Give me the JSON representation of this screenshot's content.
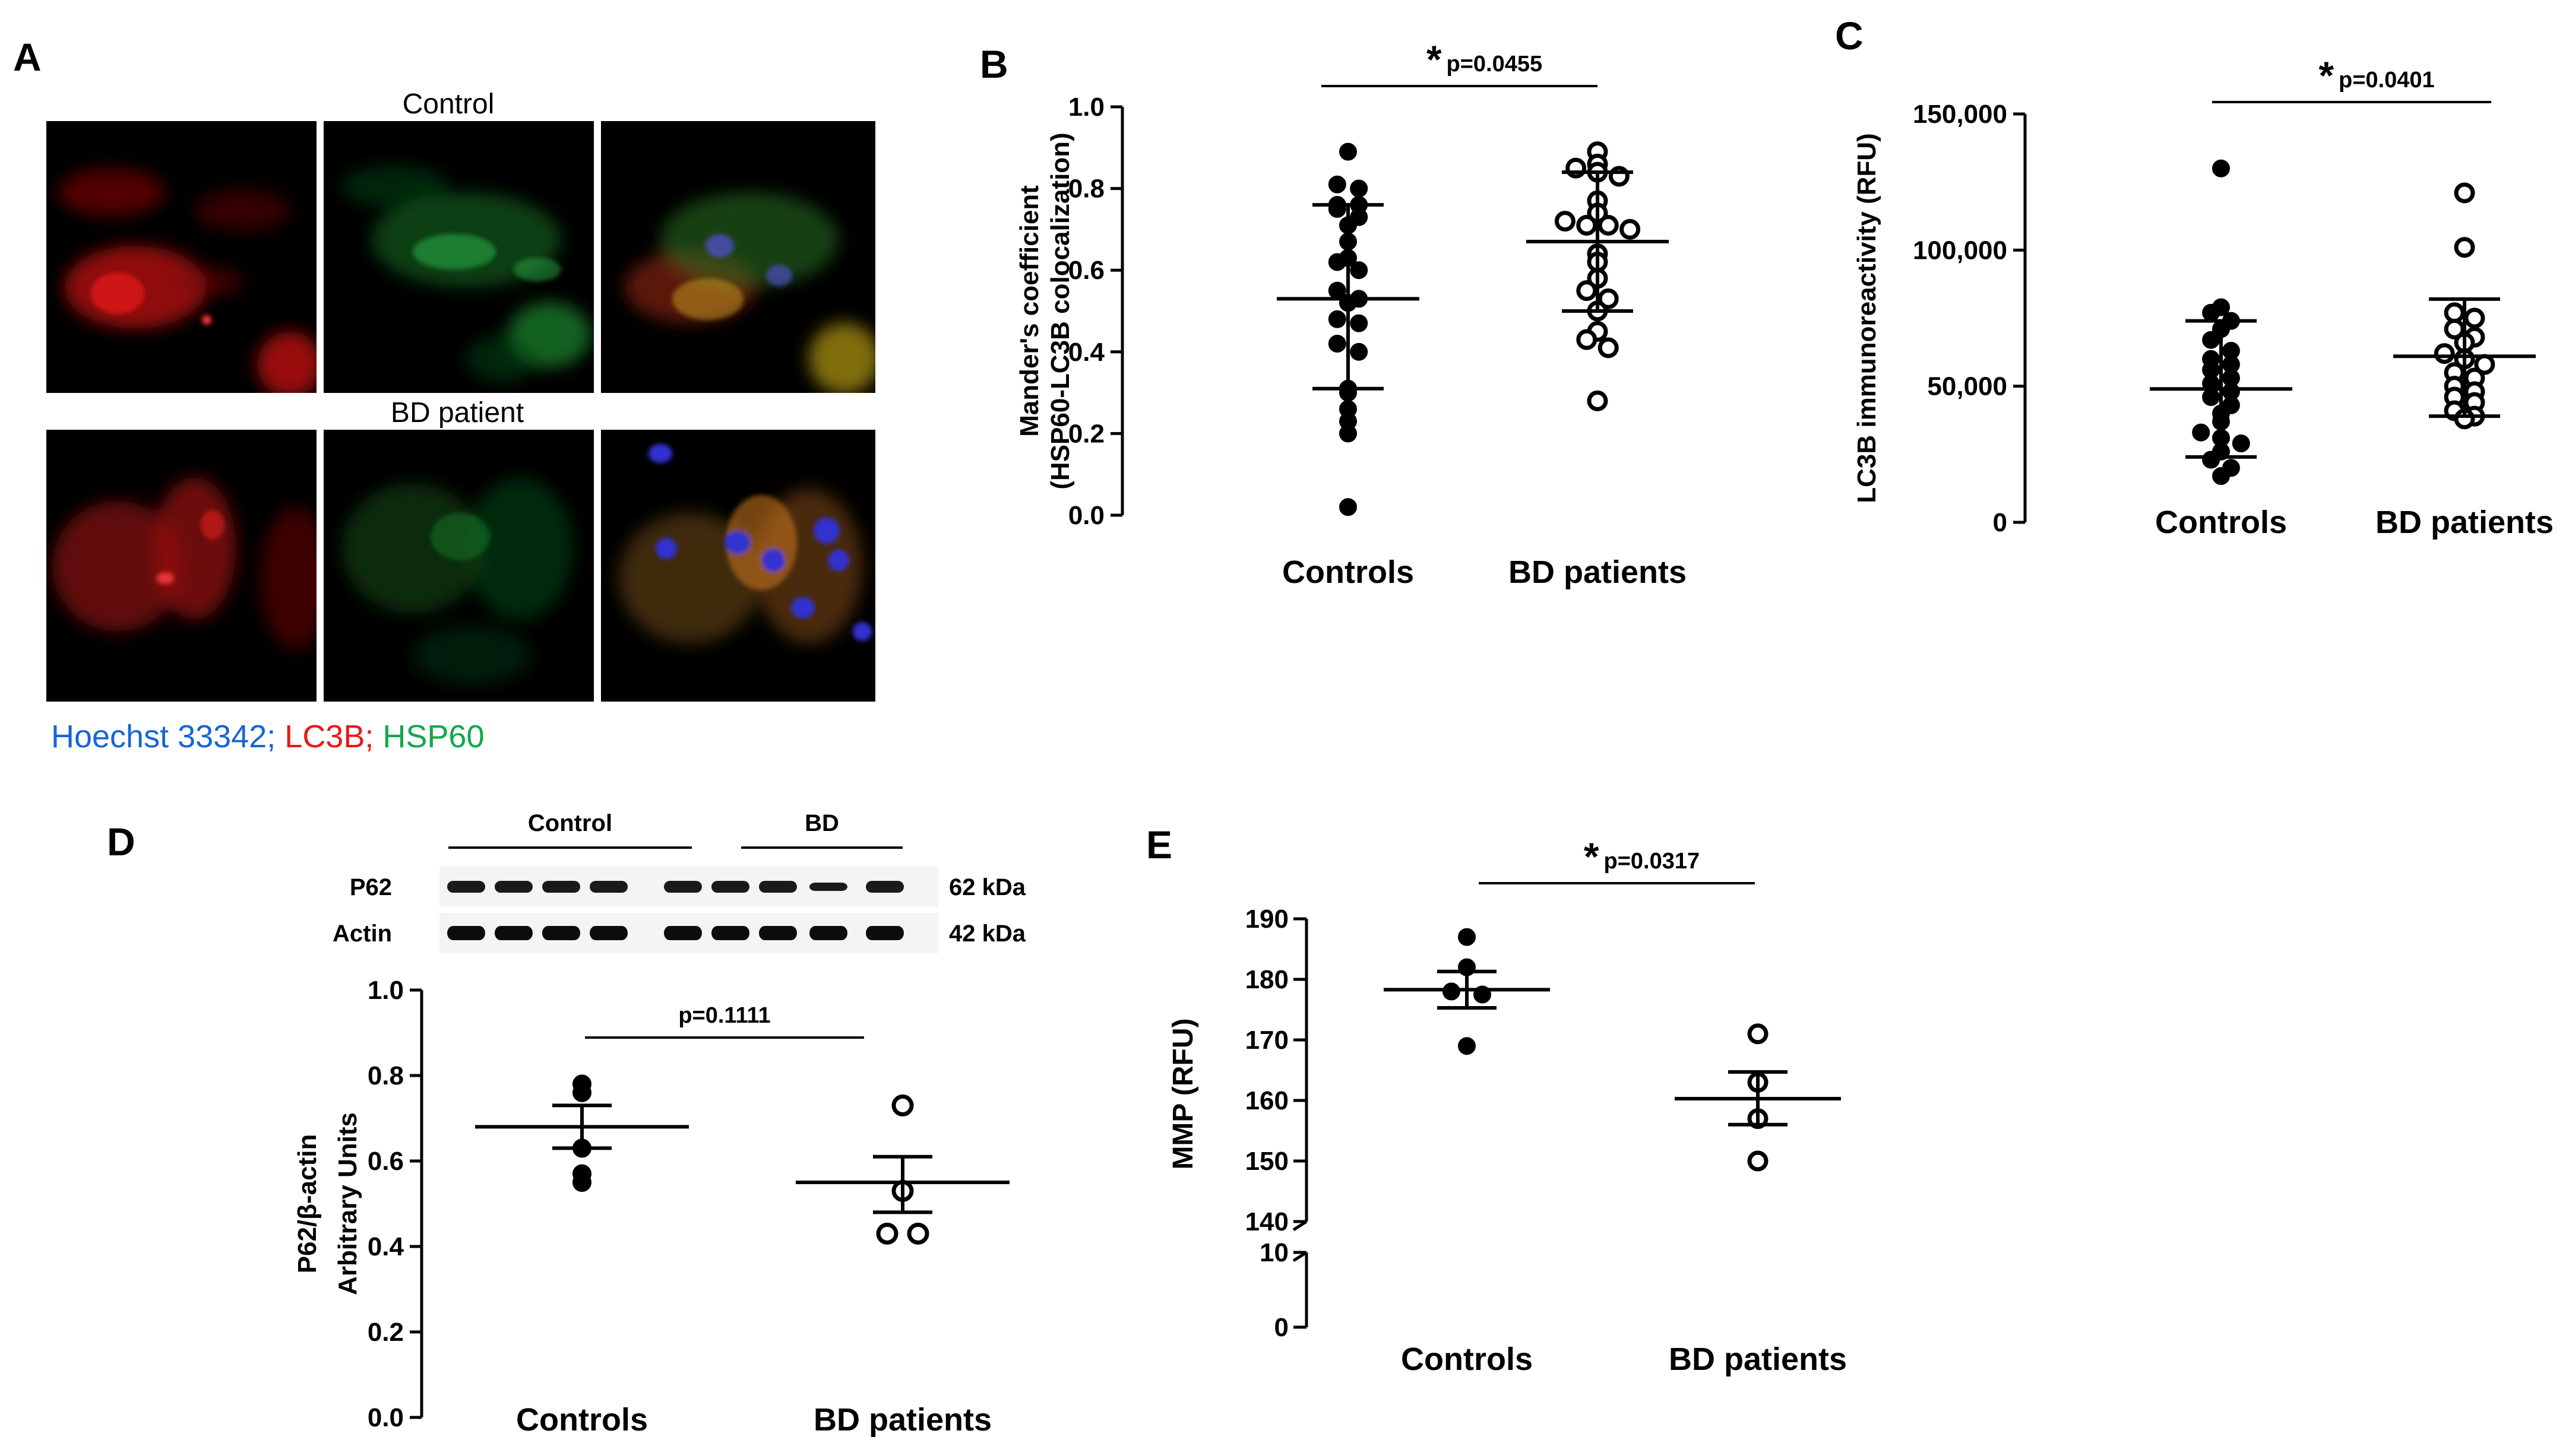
{
  "panel_letters": {
    "a": "A",
    "b": "B",
    "c": "C",
    "d": "D",
    "e": "E"
  },
  "panel_a": {
    "row1_title": "Control",
    "row2_title": "BD patient",
    "legend": {
      "hoechst": "Hoechst 33342;",
      "lc3b": "LC3B;",
      "hsp60": "HSP60"
    },
    "colors": {
      "hoechst": "#1565d8",
      "lc3b": "#e81818",
      "hsp60": "#11a84a"
    }
  },
  "western": {
    "group1": "Control",
    "group2": "BD",
    "rows": [
      {
        "name": "P62",
        "size": "62 kDa"
      },
      {
        "name": "Actin",
        "size": "42 kDa"
      }
    ]
  },
  "chart_data": [
    {
      "id": "B",
      "type": "scatter",
      "ylabel_lines": [
        "Mander's coefficient",
        "(HSP60-LC3B colocalization)"
      ],
      "categories": [
        "Controls",
        "BD patients"
      ],
      "ylim": [
        0,
        1.0
      ],
      "yticks": [
        0.0,
        0.2,
        0.4,
        0.6,
        0.8,
        1.0
      ],
      "tick_labels": [
        "0.0",
        "0.2",
        "0.4",
        "0.6",
        "0.8",
        "1.0"
      ],
      "significance": {
        "star": "*",
        "text": "p=0.0455"
      },
      "error_style": "sd",
      "series": [
        {
          "name": "Controls",
          "marker": "filled",
          "mean": 0.53,
          "err_low": 0.31,
          "err_high": 0.76,
          "values": [
            0.89,
            0.81,
            0.8,
            0.76,
            0.76,
            0.75,
            0.73,
            0.71,
            0.67,
            0.63,
            0.62,
            0.6,
            0.55,
            0.53,
            0.52,
            0.48,
            0.47,
            0.42,
            0.4,
            0.31,
            0.3,
            0.26,
            0.23,
            0.2,
            0.02
          ]
        },
        {
          "name": "BD patients",
          "marker": "open",
          "mean": 0.67,
          "err_low": 0.5,
          "err_high": 0.84,
          "values": [
            0.89,
            0.86,
            0.85,
            0.84,
            0.83,
            0.77,
            0.74,
            0.72,
            0.71,
            0.71,
            0.7,
            0.64,
            0.62,
            0.58,
            0.55,
            0.53,
            0.5,
            0.45,
            0.43,
            0.41,
            0.28
          ]
        }
      ]
    },
    {
      "id": "C",
      "type": "scatter",
      "ylabel_lines": [
        "LC3B immunoreactivity (RFU)"
      ],
      "categories": [
        "Controls",
        "BD patients"
      ],
      "ylim": [
        0,
        150000
      ],
      "yticks": [
        0,
        50000,
        100000,
        150000
      ],
      "tick_labels": [
        "0",
        "50,000",
        "100,000",
        "150,000"
      ],
      "significance": {
        "star": "*",
        "text": "p=0.0401"
      },
      "error_style": "sd",
      "series": [
        {
          "name": "Controls",
          "marker": "filled",
          "mean": 49000,
          "err_low": 24000,
          "err_high": 74000,
          "values": [
            130000,
            79000,
            77000,
            74000,
            71000,
            67000,
            63000,
            60000,
            58000,
            56000,
            53000,
            51000,
            48000,
            46000,
            43000,
            40000,
            37000,
            33000,
            31000,
            29000,
            26000,
            23000,
            20000,
            17000
          ]
        },
        {
          "name": "BD patients",
          "marker": "open",
          "mean": 61000,
          "err_low": 39000,
          "err_high": 82000,
          "values": [
            121000,
            101000,
            77000,
            75000,
            71000,
            68000,
            66000,
            62000,
            60000,
            58000,
            55000,
            53000,
            50000,
            48000,
            46000,
            44000,
            41000,
            39000,
            38000
          ]
        }
      ]
    },
    {
      "id": "D",
      "type": "scatter",
      "ylabel_lines": [
        "P62/β-actin",
        "Arbitrary Units"
      ],
      "categories": [
        "Controls",
        "BD patients"
      ],
      "ylim": [
        0,
        1.0
      ],
      "yticks": [
        0.0,
        0.2,
        0.4,
        0.6,
        0.8,
        1.0
      ],
      "tick_labels": [
        "0.0",
        "0.2",
        "0.4",
        "0.6",
        "0.8",
        "1.0"
      ],
      "significance": {
        "star": "",
        "text": "p=0.1111"
      },
      "error_style": "sem",
      "series": [
        {
          "name": "Controls",
          "marker": "filled",
          "mean": 0.68,
          "err_low": 0.63,
          "err_high": 0.73,
          "values": [
            0.78,
            0.76,
            0.63,
            0.57,
            0.55
          ]
        },
        {
          "name": "BD patients",
          "marker": "open",
          "mean": 0.55,
          "err_low": 0.48,
          "err_high": 0.61,
          "values": [
            0.73,
            0.53,
            0.43,
            0.43
          ]
        }
      ]
    },
    {
      "id": "E",
      "type": "scatter",
      "ylabel_lines": [
        "MMP (RFU)"
      ],
      "categories": [
        "Controls",
        "BD patients"
      ],
      "ylim": [
        0,
        190
      ],
      "axis_break": [
        10,
        140
      ],
      "yticks": [
        0,
        10,
        140,
        150,
        160,
        170,
        180,
        190
      ],
      "tick_labels": [
        "0",
        "10",
        "140",
        "150",
        "160",
        "170",
        "180",
        "190"
      ],
      "significance": {
        "star": "*",
        "text": "p=0.0317"
      },
      "error_style": "sem",
      "series": [
        {
          "name": "Controls",
          "marker": "filled",
          "mean": 178.3,
          "err_low": 175.3,
          "err_high": 181.3,
          "values": [
            187,
            182,
            178,
            177.5,
            169
          ]
        },
        {
          "name": "BD patients",
          "marker": "open",
          "mean": 160.3,
          "err_low": 156.0,
          "err_high": 164.7,
          "values": [
            171,
            163,
            157,
            150
          ]
        }
      ]
    }
  ]
}
